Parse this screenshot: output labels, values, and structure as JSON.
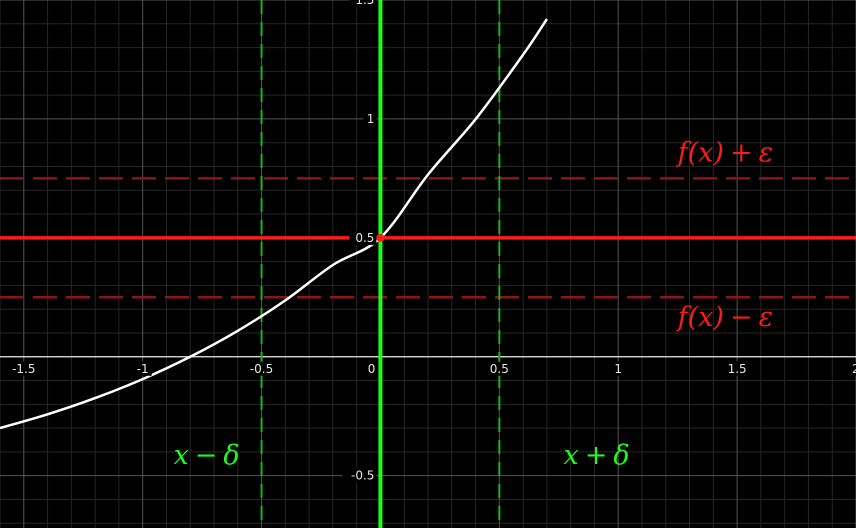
{
  "chart_data": {
    "type": "line",
    "title": "",
    "xlabel": "",
    "ylabel": "",
    "xlim": [
      -1.6,
      2.0
    ],
    "ylim": [
      -0.72,
      1.5
    ],
    "grid": true,
    "x_ticks": [
      {
        "value": -1.5,
        "label": "-1.5"
      },
      {
        "value": -1,
        "label": "-1"
      },
      {
        "value": -0.5,
        "label": "-0.5"
      },
      {
        "value": 0.5,
        "label": "0.5"
      },
      {
        "value": 1,
        "label": "1"
      },
      {
        "value": 1.5,
        "label": "1.5"
      },
      {
        "value": 2,
        "label": "2"
      }
    ],
    "y_ticks": [
      {
        "value": 1.5,
        "label": "1.5"
      },
      {
        "value": 1,
        "label": "1"
      },
      {
        "value": 0.5,
        "label": "0.5"
      },
      {
        "value": -0.5,
        "label": "-0.5"
      }
    ],
    "origin_label": "0",
    "curve": {
      "color": "#ffffff",
      "x": [
        -1.6,
        -1.4,
        -1.2,
        -1.0,
        -0.8,
        -0.6,
        -0.4,
        -0.2,
        0.0,
        0.2,
        0.4,
        0.6,
        0.7
      ],
      "y": [
        -0.3,
        -0.242,
        -0.174,
        -0.094,
        0.0,
        0.109,
        0.237,
        0.386,
        0.5,
        0.766,
        0.999,
        1.27,
        1.42
      ]
    },
    "point": {
      "x": 0,
      "y": 0.5,
      "color": "#ff1a1a"
    },
    "vertical_lines": [
      {
        "x": 0,
        "style": "solid",
        "color": "#1aff1a"
      },
      {
        "x": -0.5,
        "style": "dashed",
        "color": "#1ab31a"
      },
      {
        "x": 0.5,
        "style": "dashed",
        "color": "#1ab31a"
      }
    ],
    "horizontal_lines": [
      {
        "y": 0.5,
        "style": "solid",
        "color": "#ff1a1a"
      },
      {
        "y": 0.75,
        "style": "dashed",
        "color": "#8c1616"
      },
      {
        "y": 0.25,
        "style": "dashed",
        "color": "#8c1616"
      }
    ],
    "annotations": [
      {
        "x": 1.25,
        "y": 0.82,
        "base": "f(x)",
        "op": "+",
        "sym": "ε",
        "color": "#ff1a1a"
      },
      {
        "x": 1.25,
        "y": 0.13,
        "base": "f(x)",
        "op": "−",
        "sym": "ε",
        "color": "#ff1a1a"
      },
      {
        "x": -0.87,
        "y": -0.45,
        "base": "x",
        "op": "−",
        "sym": "δ",
        "color": "#1aff1a"
      },
      {
        "x": 0.77,
        "y": -0.45,
        "base": "x",
        "op": "+",
        "sym": "δ",
        "color": "#1aff1a"
      }
    ]
  }
}
